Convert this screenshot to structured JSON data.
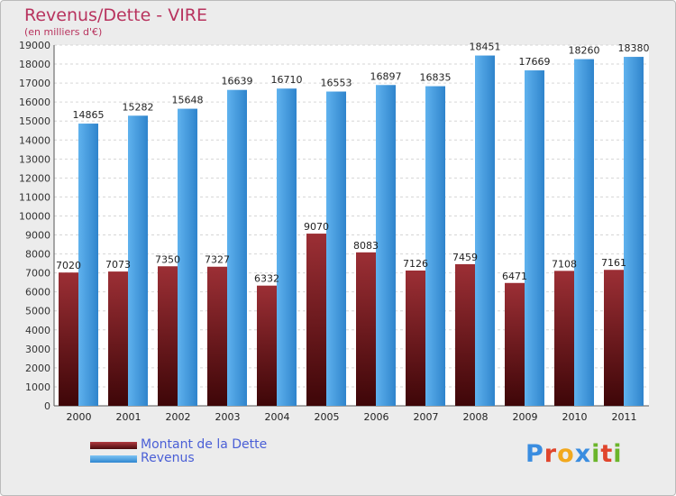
{
  "chart_data": {
    "type": "bar",
    "title": "Revenus/Dette - VIRE",
    "subtitle": "(en milliers d'€)",
    "categories": [
      "2000",
      "2001",
      "2002",
      "2003",
      "2004",
      "2005",
      "2006",
      "2007",
      "2008",
      "2009",
      "2010",
      "2011"
    ],
    "series": [
      {
        "name": "Montant de la Dette",
        "values": [
          7020,
          7073,
          7350,
          7327,
          6332,
          9070,
          8083,
          7126,
          7459,
          6471,
          7108,
          7161
        ],
        "labels": [
          "7020",
          "7073",
          "7350",
          "7327",
          "6332",
          "9070",
          "8083",
          "7126",
          "7459",
          "6471",
          "7108",
          "7161"
        ],
        "color": "#7a1f24"
      },
      {
        "name": "Revenus",
        "values": [
          14865,
          15282,
          15648,
          16639,
          16710,
          16553,
          16897,
          16835,
          18451,
          17669,
          18260,
          18380
        ],
        "labels": [
          "14865",
          "15282",
          "15648",
          "16639",
          "16710",
          "16553",
          "16897",
          "16835",
          "18451",
          "17669",
          "18260",
          "18380"
        ],
        "color": "#4aa3e6"
      }
    ],
    "ylim": [
      0,
      19000
    ],
    "yticks": [
      0,
      1000,
      2000,
      3000,
      4000,
      5000,
      6000,
      7000,
      8000,
      9000,
      10000,
      11000,
      12000,
      13000,
      14000,
      15000,
      16000,
      17000,
      18000,
      19000
    ],
    "grid": true,
    "legend": "bottom-left"
  },
  "logo": {
    "letters": [
      "P",
      "r",
      "o",
      "x",
      "i",
      "t",
      "i"
    ],
    "colors": [
      "#3a8de0",
      "#e0452c",
      "#f2a81d",
      "#3a8de0",
      "#6bb52b",
      "#e0452c",
      "#6bb52b"
    ]
  }
}
